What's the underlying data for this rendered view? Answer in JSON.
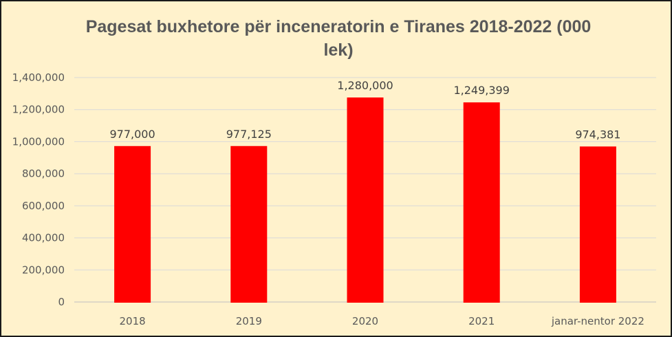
{
  "chart_data": {
    "type": "bar",
    "title": "Pagesat buxhetore për inceneratorin e Tiranes 2018-2022 (000 lek)",
    "categories": [
      "2018",
      "2019",
      "2020",
      "2021",
      "janar-nentor 2022"
    ],
    "values": [
      977000,
      977125,
      1280000,
      1249399,
      974381
    ],
    "value_labels": [
      "977,000",
      "977,125",
      "1,280,000",
      "1,249,399",
      "974,381"
    ],
    "ylim": [
      0,
      1400000
    ],
    "yticks": [
      0,
      200000,
      400000,
      600000,
      800000,
      1000000,
      1200000,
      1400000
    ],
    "ytick_labels": [
      "0",
      "200,000",
      "400,000",
      "600,000",
      "800,000",
      "1,000,000",
      "1,200,000",
      "1,400,000"
    ],
    "grid": true,
    "legend": "none",
    "bar_color": "#ff0000",
    "background_color": "#fff2cc"
  }
}
